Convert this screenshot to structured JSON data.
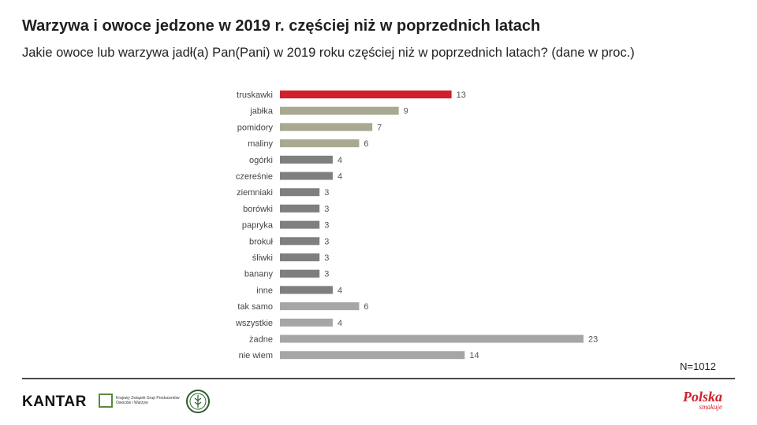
{
  "title": "Warzywa i owoce jedzone w 2019 r. częściej niż w poprzednich latach",
  "subtitle": "Jakie owoce lub warzywa jadł(a) Pan(Pani) w 2019 roku częściej niż w poprzednich latach? (dane w proc.)",
  "sample_note": "N=1012",
  "logos": {
    "kantar": "KANTAR",
    "kzgp": "Krajowy Związek Grup Producentów Owoców i Warzyw",
    "polska": "Polska",
    "polska_sub": "smakuje"
  },
  "chart_data": {
    "type": "bar",
    "orientation": "horizontal",
    "categories": [
      "truskawki",
      "jabłka",
      "pomidory",
      "maliny",
      "ogórki",
      "czereśnie",
      "ziemniaki",
      "borówki",
      "papryka",
      "brokuł",
      "śliwki",
      "banany",
      "inne",
      "tak samo",
      "wszystkie",
      "żadne",
      "nie wiem"
    ],
    "values": [
      13,
      9,
      7,
      6,
      4,
      4,
      3,
      3,
      3,
      3,
      3,
      3,
      4,
      6,
      4,
      23,
      14
    ],
    "colors": [
      "#d0202c",
      "#a9a891",
      "#a9a891",
      "#a9a891",
      "#7f7f7f",
      "#7f7f7f",
      "#7f7f7f",
      "#7f7f7f",
      "#7f7f7f",
      "#7f7f7f",
      "#7f7f7f",
      "#7f7f7f",
      "#7f7f7f",
      "#a6a6a6",
      "#a6a6a6",
      "#a6a6a6",
      "#a6a6a6"
    ],
    "xlim": [
      0,
      23
    ],
    "grid": false,
    "legend": "none",
    "data_labels": true
  }
}
